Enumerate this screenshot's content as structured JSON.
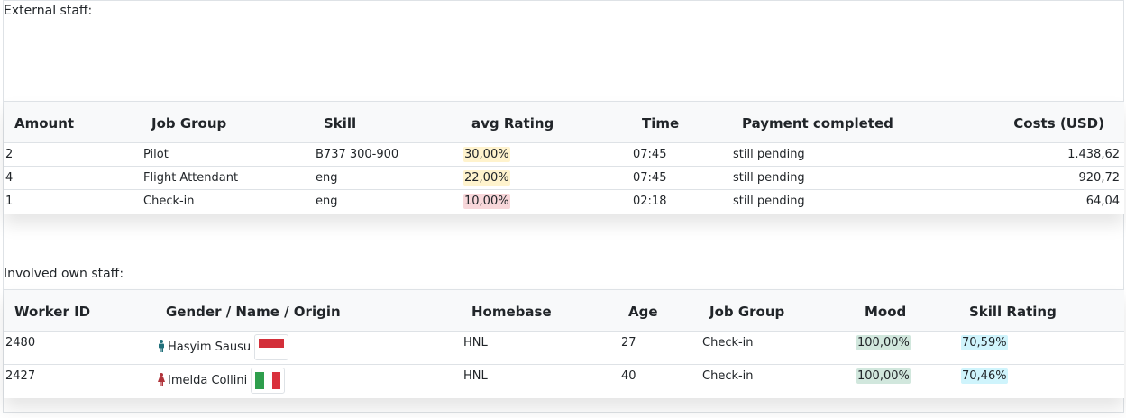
{
  "external": {
    "label": "External staff:",
    "headers": [
      "Amount",
      "Job Group",
      "Skill",
      "avg Rating",
      "Time",
      "Payment completed",
      "Costs (USD)"
    ],
    "rows": [
      {
        "amount": "2",
        "job_group": "Pilot",
        "skill": "B737 300-900",
        "rating": "30,00%",
        "rating_color": "#fff3cd",
        "time": "07:45",
        "payment": "still pending",
        "costs": "1.438,62"
      },
      {
        "amount": "4",
        "job_group": "Flight Attendant",
        "skill": "eng",
        "rating": "22,00%",
        "rating_color": "#fff3cd",
        "time": "07:45",
        "payment": "still pending",
        "costs": "920,72"
      },
      {
        "amount": "1",
        "job_group": "Check-in",
        "skill": "eng",
        "rating": "10,00%",
        "rating_color": "#f8d7da",
        "time": "02:18",
        "payment": "still pending",
        "costs": "64,04"
      }
    ]
  },
  "own": {
    "label": "Involved own staff:",
    "headers": [
      "Worker ID",
      "Gender / Name / Origin",
      "Homebase",
      "Age",
      "Job Group",
      "Mood",
      "Skill Rating"
    ],
    "rows": [
      {
        "worker_id": "2480",
        "gender_icon": "male-icon",
        "gender_color": "#1f6f7a",
        "name": "Hasyim Sausu",
        "flag_icon": "indonesia-flag-icon",
        "homebase": "HNL",
        "age": "27",
        "job_group": "Check-in",
        "mood": "100,00%",
        "skill_rating": "70,59%"
      },
      {
        "worker_id": "2427",
        "gender_icon": "female-icon",
        "gender_color": "#b0333a",
        "name": "Imelda Collini",
        "flag_icon": "italy-flag-icon",
        "homebase": "HNL",
        "age": "40",
        "job_group": "Check-in",
        "mood": "100,00%",
        "skill_rating": "70,46%"
      }
    ]
  },
  "colors": {
    "header_bg": "#f8f9fa",
    "border": "#dee2e6",
    "warning_bg": "#fff3cd",
    "danger_bg": "#f8d7da",
    "success_bg": "#d1e7dd",
    "info_bg": "#cff4fc"
  }
}
